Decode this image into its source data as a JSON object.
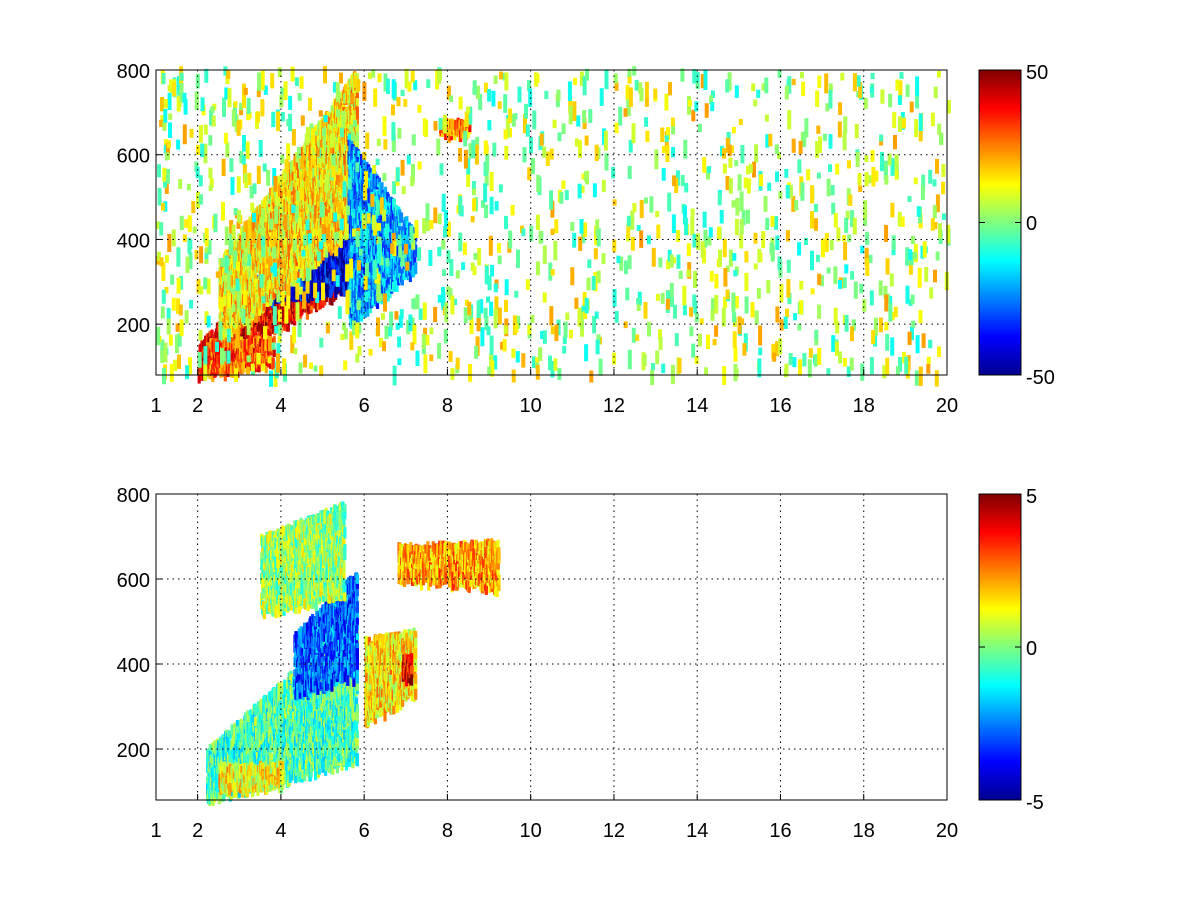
{
  "chart_data": [
    {
      "type": "heatmap",
      "title": "",
      "xlabel": "",
      "ylabel": "",
      "xlim": [
        1,
        20
      ],
      "ylim": [
        80,
        800
      ],
      "xticks": [
        1,
        2,
        4,
        6,
        8,
        10,
        12,
        14,
        16,
        18,
        20
      ],
      "xtick_labels": [
        "1",
        "2",
        "4",
        "6",
        "8",
        "10",
        "12",
        "14",
        "16",
        "18",
        "20"
      ],
      "yticks": [
        200,
        400,
        600,
        800
      ],
      "ytick_labels": [
        "200",
        "400",
        "600",
        "800"
      ],
      "grid": true,
      "colormap": "jet",
      "clim": [
        -50,
        50
      ],
      "colorbar_ticks": [
        50,
        0,
        -50
      ],
      "colorbar_labels": [
        "50",
        "0",
        "-50"
      ],
      "structures": [
        {
          "kind": "band",
          "x": [
            2.0,
            5.8
          ],
          "y_lo": [
            80,
            300
          ],
          "y_hi": [
            150,
            560
          ],
          "value": 38
        },
        {
          "kind": "band",
          "x": [
            3.2,
            5.8
          ],
          "y_lo": [
            250,
            290
          ],
          "y_hi": [
            300,
            420
          ],
          "value": -40
        },
        {
          "kind": "band",
          "x": [
            2.5,
            5.8
          ],
          "y_lo": [
            150,
            430
          ],
          "y_hi": [
            350,
            800
          ],
          "value": 15
        },
        {
          "kind": "band",
          "x": [
            2.2,
            3.8
          ],
          "y_lo": [
            80,
            110
          ],
          "y_hi": [
            160,
            170
          ],
          "value": 30
        },
        {
          "kind": "band",
          "x": [
            5.6,
            7.2
          ],
          "y_lo": [
            200,
            330
          ],
          "y_hi": [
            640,
            420
          ],
          "value": -22
        },
        {
          "kind": "band",
          "x": [
            7.8,
            8.5
          ],
          "y_lo": [
            650,
            650
          ],
          "y_hi": [
            680,
            680
          ],
          "value": 25
        },
        {
          "kind": "scatter",
          "x": [
            1.0,
            20.0
          ],
          "y_lo": [
            80,
            80
          ],
          "y_hi": [
            800,
            800
          ],
          "value": 0
        }
      ]
    },
    {
      "type": "heatmap",
      "title": "",
      "xlabel": "",
      "ylabel": "",
      "xlim": [
        1,
        20
      ],
      "ylim": [
        80,
        800
      ],
      "xticks": [
        1,
        2,
        4,
        6,
        8,
        10,
        12,
        14,
        16,
        18,
        20
      ],
      "xtick_labels": [
        "1",
        "2",
        "4",
        "6",
        "8",
        "10",
        "12",
        "14",
        "16",
        "18",
        "20"
      ],
      "yticks": [
        200,
        400,
        600,
        800
      ],
      "ytick_labels": [
        "200",
        "400",
        "600",
        "800"
      ],
      "grid": true,
      "colormap": "jet",
      "clim": [
        -5,
        5
      ],
      "colorbar_ticks": [
        5,
        0,
        -5
      ],
      "colorbar_labels": [
        "5",
        "0",
        "-5"
      ],
      "structures": [
        {
          "kind": "band",
          "x": [
            2.2,
            5.8
          ],
          "y_lo": [
            80,
            170
          ],
          "y_hi": [
            200,
            520
          ],
          "value": -0.5
        },
        {
          "kind": "band",
          "x": [
            4.3,
            5.8
          ],
          "y_lo": [
            330,
            370
          ],
          "y_hi": [
            470,
            620
          ],
          "value": -2.8
        },
        {
          "kind": "band",
          "x": [
            3.5,
            5.5
          ],
          "y_lo": [
            520,
            560
          ],
          "y_hi": [
            700,
            780
          ],
          "value": 0.3
        },
        {
          "kind": "band",
          "x": [
            2.5,
            4.0
          ],
          "y_lo": [
            100,
            110
          ],
          "y_hi": [
            160,
            170
          ],
          "value": 1.2
        },
        {
          "kind": "band",
          "x": [
            6.0,
            7.2
          ],
          "y_lo": [
            260,
            330
          ],
          "y_hi": [
            460,
            480
          ],
          "value": 1.5
        },
        {
          "kind": "band",
          "x": [
            6.9,
            7.1
          ],
          "y_lo": [
            370,
            370
          ],
          "y_hi": [
            420,
            420
          ],
          "value": 4.0
        },
        {
          "kind": "band",
          "x": [
            6.8,
            9.2
          ],
          "y_lo": [
            600,
            580
          ],
          "y_hi": [
            680,
            690
          ],
          "value": 2.2
        }
      ]
    }
  ]
}
